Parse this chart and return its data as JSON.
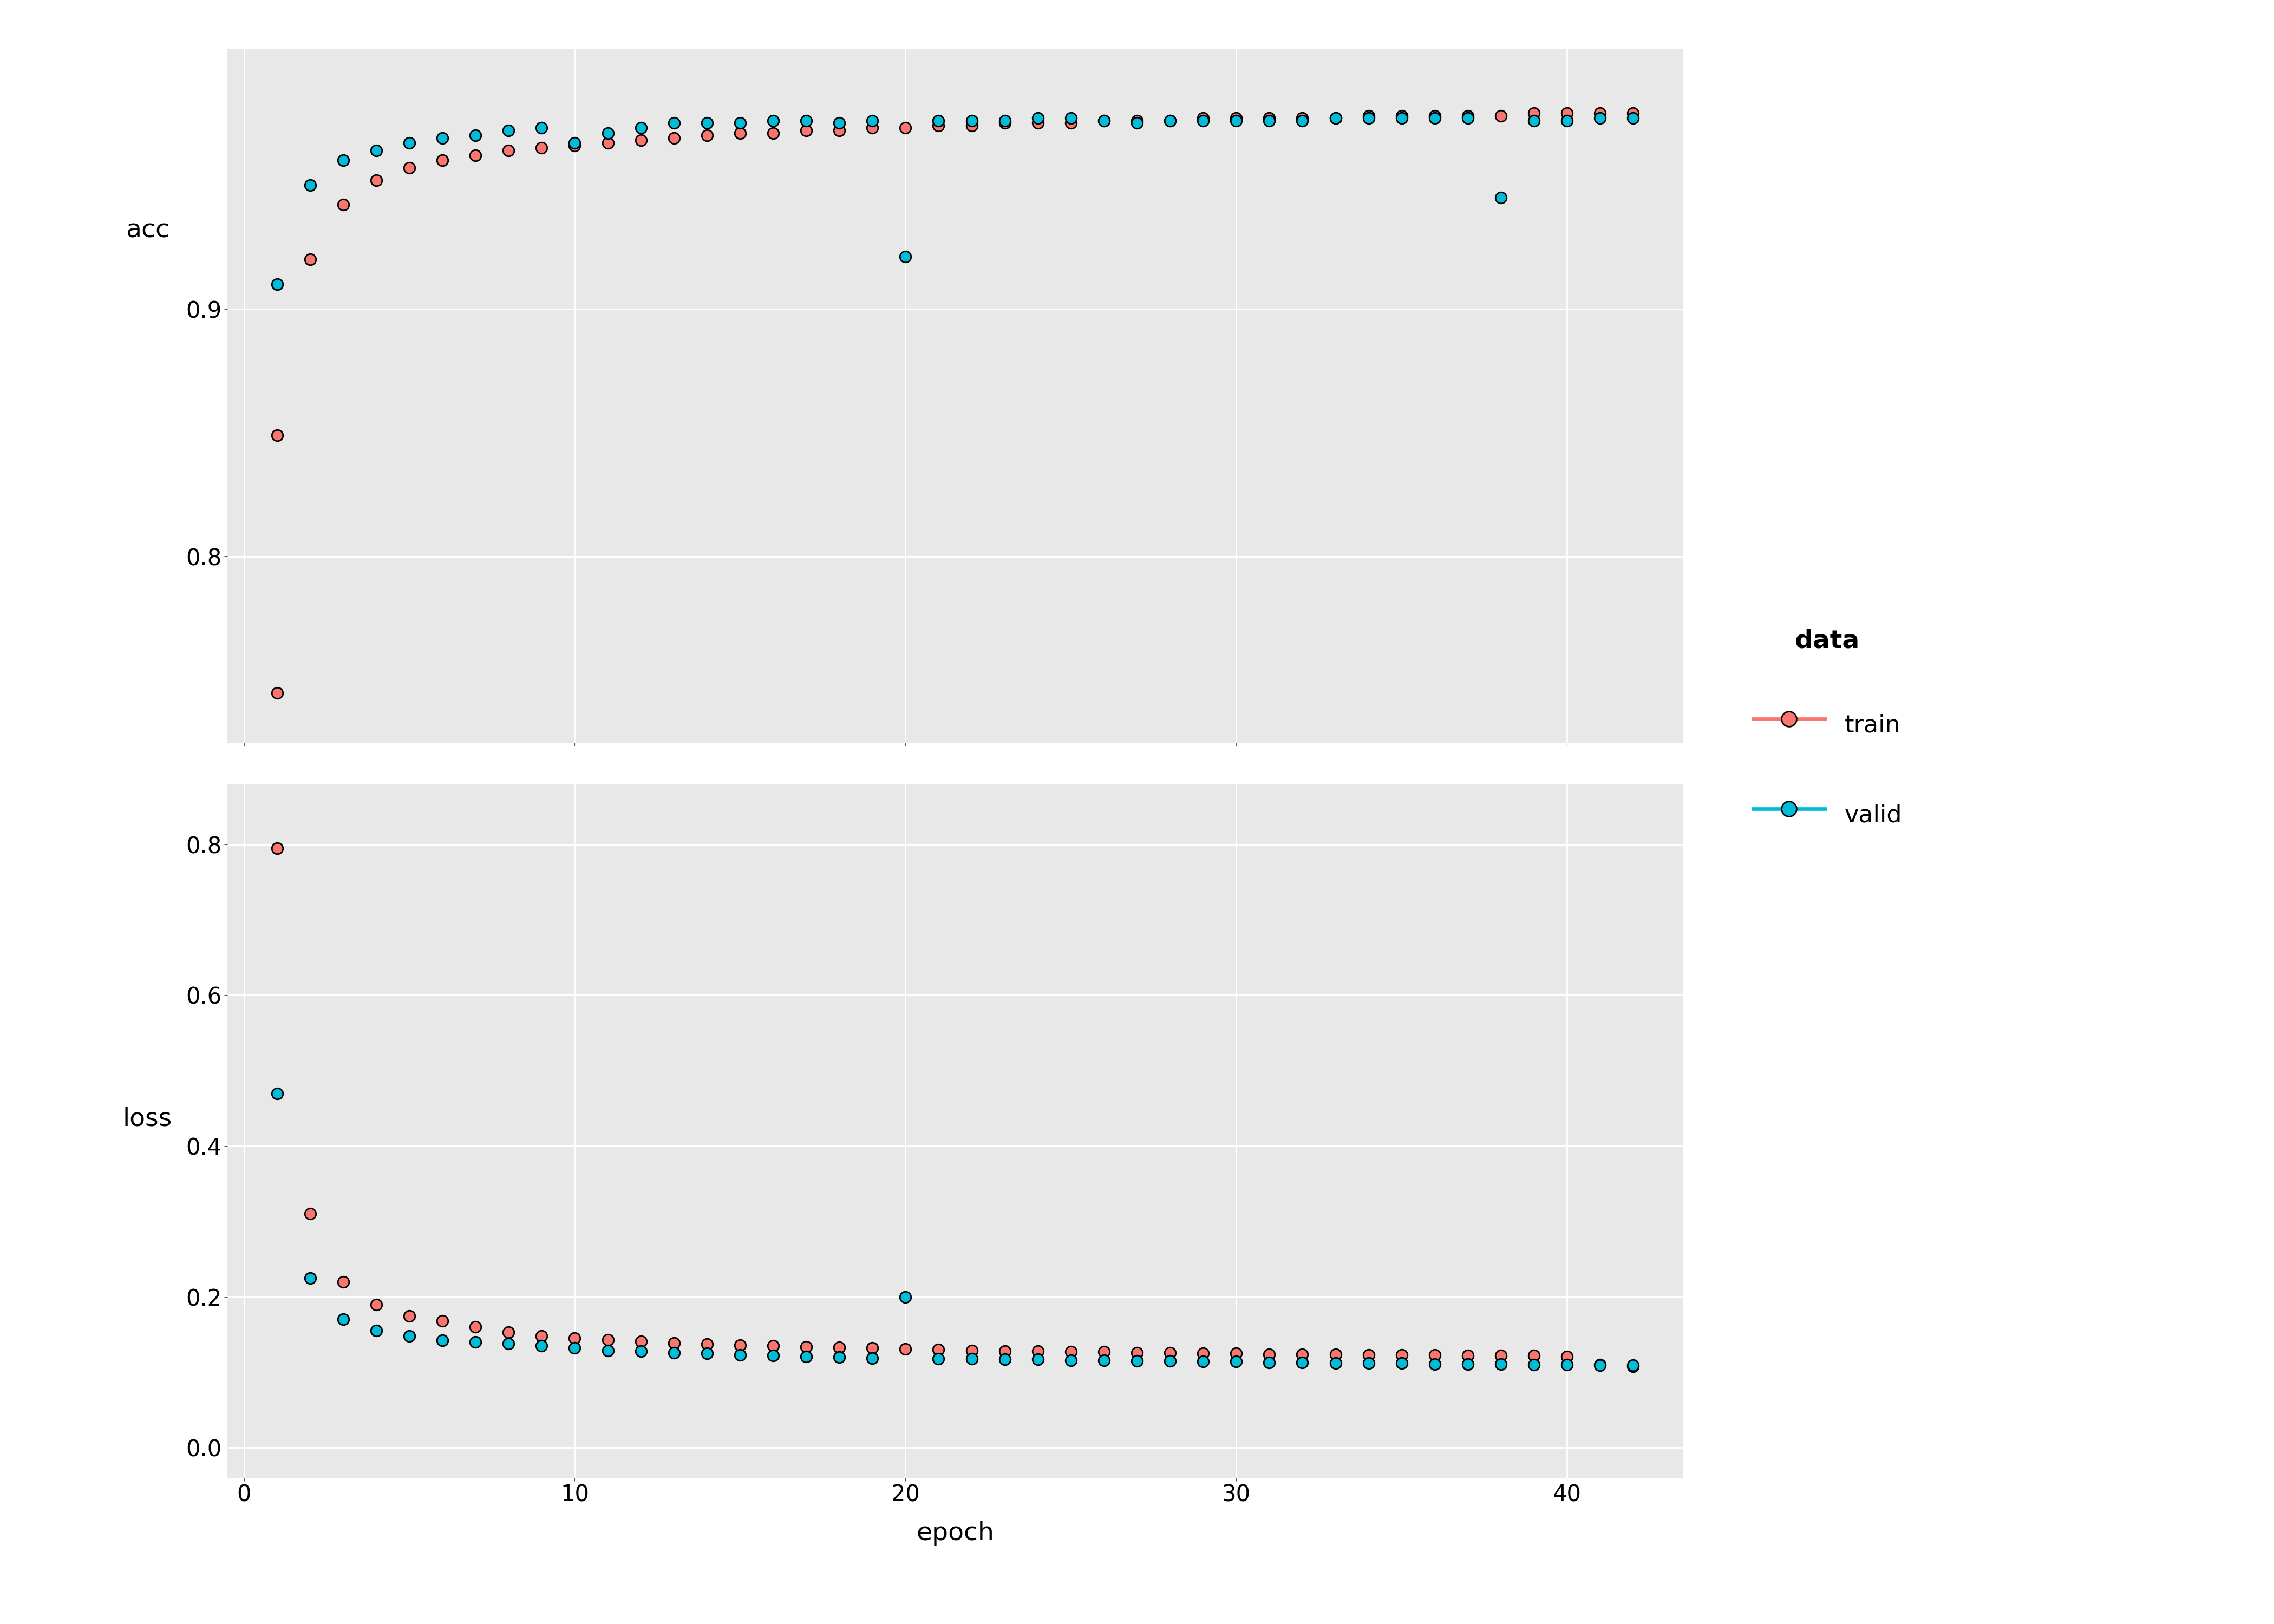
{
  "background_color": "#e8e8e8",
  "outer_background": "#ffffff",
  "grid_color": "#ffffff",
  "train_color": "#F8766D",
  "valid_color": "#00BCD8",
  "point_edgecolor": "#000000",
  "point_size": 220,
  "line_width": 6.0,
  "acc_train_x": [
    1,
    2,
    3,
    4,
    5,
    6,
    7,
    8,
    9,
    10,
    11,
    12,
    13,
    14,
    15,
    16,
    17,
    18,
    19,
    20,
    21,
    22,
    23,
    24,
    25,
    26,
    27,
    28,
    29,
    30,
    31,
    32,
    33,
    34,
    35,
    36,
    37,
    38,
    39,
    40,
    41,
    42
  ],
  "acc_train_y": [
    0.849,
    0.92,
    0.942,
    0.952,
    0.957,
    0.96,
    0.962,
    0.964,
    0.965,
    0.966,
    0.967,
    0.968,
    0.969,
    0.97,
    0.971,
    0.971,
    0.972,
    0.972,
    0.973,
    0.973,
    0.974,
    0.974,
    0.975,
    0.975,
    0.975,
    0.976,
    0.976,
    0.976,
    0.977,
    0.977,
    0.977,
    0.977,
    0.977,
    0.978,
    0.978,
    0.978,
    0.978,
    0.978,
    0.979,
    0.979,
    0.979,
    0.979
  ],
  "acc_valid_x": [
    1,
    2,
    3,
    4,
    5,
    6,
    7,
    8,
    9,
    10,
    11,
    12,
    13,
    14,
    15,
    16,
    17,
    18,
    19,
    20,
    21,
    22,
    23,
    24,
    25,
    26,
    27,
    28,
    29,
    30,
    31,
    32,
    33,
    34,
    35,
    36,
    37,
    38,
    39,
    40,
    41,
    42
  ],
  "acc_valid_y": [
    0.91,
    0.95,
    0.96,
    0.964,
    0.967,
    0.969,
    0.97,
    0.972,
    0.973,
    0.967,
    0.971,
    0.973,
    0.975,
    0.975,
    0.975,
    0.976,
    0.976,
    0.975,
    0.976,
    0.921,
    0.976,
    0.976,
    0.976,
    0.977,
    0.977,
    0.976,
    0.975,
    0.976,
    0.976,
    0.976,
    0.976,
    0.976,
    0.977,
    0.977,
    0.977,
    0.977,
    0.977,
    0.945,
    0.976,
    0.976,
    0.977,
    0.977
  ],
  "acc_train_outlier_x": [
    1
  ],
  "acc_train_outlier_y": [
    0.745
  ],
  "loss_train_x": [
    1,
    2,
    3,
    4,
    5,
    6,
    7,
    8,
    9,
    10,
    11,
    12,
    13,
    14,
    15,
    16,
    17,
    18,
    19,
    20,
    21,
    22,
    23,
    24,
    25,
    26,
    27,
    28,
    29,
    30,
    31,
    32,
    33,
    34,
    35,
    36,
    37,
    38,
    39,
    40,
    41,
    42
  ],
  "loss_train_y": [
    0.795,
    0.31,
    0.22,
    0.19,
    0.175,
    0.168,
    0.16,
    0.153,
    0.148,
    0.145,
    0.143,
    0.141,
    0.139,
    0.137,
    0.136,
    0.135,
    0.134,
    0.133,
    0.132,
    0.131,
    0.13,
    0.129,
    0.128,
    0.128,
    0.127,
    0.127,
    0.126,
    0.126,
    0.125,
    0.125,
    0.124,
    0.124,
    0.124,
    0.123,
    0.123,
    0.123,
    0.122,
    0.122,
    0.122,
    0.121,
    0.11,
    0.108
  ],
  "loss_valid_x": [
    1,
    2,
    3,
    4,
    5,
    6,
    7,
    8,
    9,
    10,
    11,
    12,
    13,
    14,
    15,
    16,
    17,
    18,
    19,
    20,
    21,
    22,
    23,
    24,
    25,
    26,
    27,
    28,
    29,
    30,
    31,
    32,
    33,
    34,
    35,
    36,
    37,
    38,
    39,
    40,
    41,
    42
  ],
  "loss_valid_y": [
    0.47,
    0.225,
    0.17,
    0.155,
    0.148,
    0.142,
    0.14,
    0.138,
    0.135,
    0.132,
    0.129,
    0.128,
    0.126,
    0.125,
    0.123,
    0.122,
    0.121,
    0.12,
    0.119,
    0.2,
    0.118,
    0.118,
    0.117,
    0.117,
    0.116,
    0.116,
    0.115,
    0.115,
    0.114,
    0.114,
    0.113,
    0.113,
    0.112,
    0.112,
    0.112,
    0.111,
    0.111,
    0.111,
    0.11,
    0.11,
    0.109,
    0.109
  ],
  "acc_ylim": [
    0.725,
    1.005
  ],
  "acc_yticks": [
    0.8,
    0.9
  ],
  "loss_ylim": [
    -0.04,
    0.88
  ],
  "loss_yticks": [
    0.0,
    0.2,
    0.4,
    0.6,
    0.8
  ],
  "xlim": [
    -0.5,
    43.5
  ],
  "xticks": [
    0,
    10,
    20,
    30,
    40
  ],
  "xlabel": "epoch",
  "acc_ylabel": "acc",
  "loss_ylabel": "loss",
  "legend_title": "data",
  "legend_train": "train",
  "legend_valid": "valid",
  "axis_label_fontsize": 34,
  "tick_fontsize": 30,
  "legend_fontsize": 32,
  "legend_title_fontsize": 34
}
